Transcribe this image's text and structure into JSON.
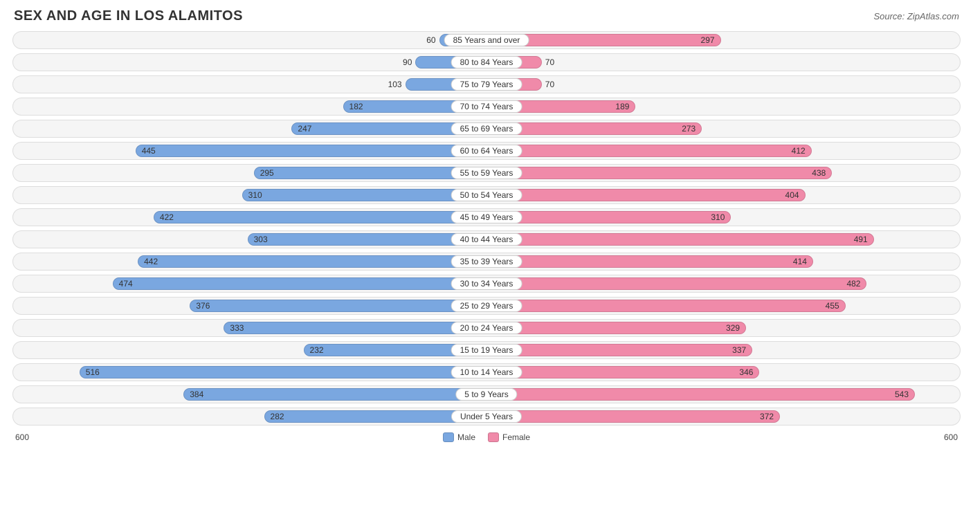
{
  "title": "SEX AND AGE IN LOS ALAMITOS",
  "source_label": "Source: ",
  "source_name": "ZipAtlas.com",
  "chart": {
    "type": "population-pyramid",
    "max_value": 600,
    "background_color": "#ffffff",
    "row_background": "#f5f5f5",
    "row_border": "#dddddd",
    "male_color": "#7aa7e0",
    "female_color": "#f08aa9",
    "text_color": "#333333",
    "value_fontsize": 12,
    "title_fontsize": 20,
    "value_inside_threshold": 180,
    "rows": [
      {
        "label": "85 Years and over",
        "male": 60,
        "female": 297
      },
      {
        "label": "80 to 84 Years",
        "male": 90,
        "female": 70
      },
      {
        "label": "75 to 79 Years",
        "male": 103,
        "female": 70
      },
      {
        "label": "70 to 74 Years",
        "male": 182,
        "female": 189
      },
      {
        "label": "65 to 69 Years",
        "male": 247,
        "female": 273
      },
      {
        "label": "60 to 64 Years",
        "male": 445,
        "female": 412
      },
      {
        "label": "55 to 59 Years",
        "male": 295,
        "female": 438
      },
      {
        "label": "50 to 54 Years",
        "male": 310,
        "female": 404
      },
      {
        "label": "45 to 49 Years",
        "male": 422,
        "female": 310
      },
      {
        "label": "40 to 44 Years",
        "male": 303,
        "female": 491
      },
      {
        "label": "35 to 39 Years",
        "male": 442,
        "female": 414
      },
      {
        "label": "30 to 34 Years",
        "male": 474,
        "female": 482
      },
      {
        "label": "25 to 29 Years",
        "male": 376,
        "female": 455
      },
      {
        "label": "20 to 24 Years",
        "male": 333,
        "female": 329
      },
      {
        "label": "15 to 19 Years",
        "male": 232,
        "female": 337
      },
      {
        "label": "10 to 14 Years",
        "male": 516,
        "female": 346
      },
      {
        "label": "5 to 9 Years",
        "male": 384,
        "female": 543
      },
      {
        "label": "Under 5 Years",
        "male": 282,
        "female": 372
      }
    ],
    "axis_left": "600",
    "axis_right": "600",
    "legend": {
      "male_label": "Male",
      "female_label": "Female"
    }
  }
}
